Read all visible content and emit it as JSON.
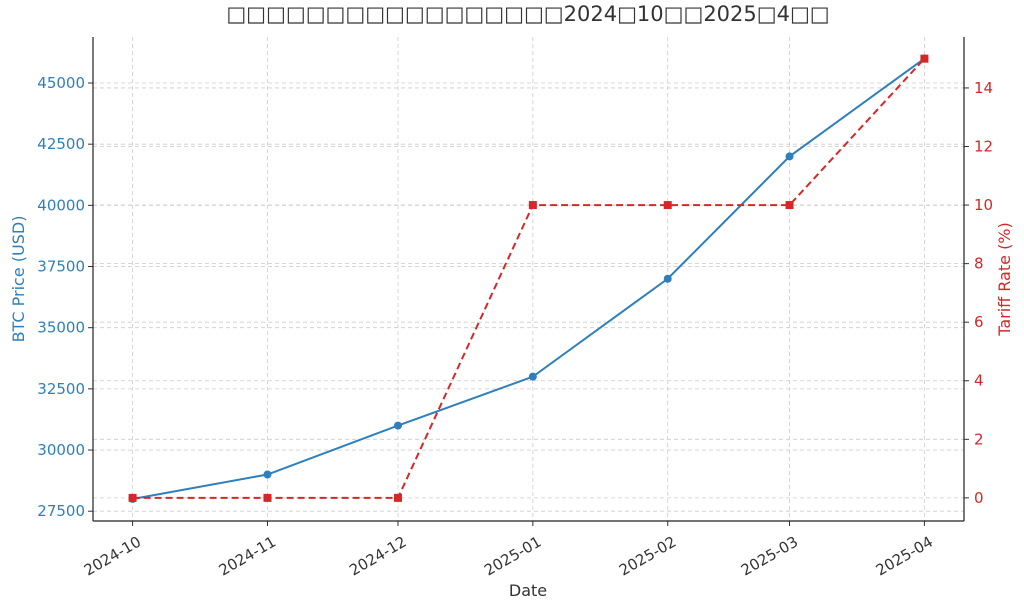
{
  "chart_data": {
    "type": "line",
    "title": "□□□□□□□□□□□□□□□□□2024□10□□2025□4□□",
    "x_label": "Date",
    "y_label": "BTC Price (USD)",
    "y2_label": "Tariff Rate (%)",
    "x": [
      "2024-10",
      "2024-11",
      "2024-12",
      "2025-01",
      "2025-02",
      "2025-03",
      "2025-04"
    ],
    "series": [
      {
        "name": "BTC Price (USD)",
        "color": "#2f7fbc",
        "marker": "circle",
        "dash": false,
        "values": [
          28000,
          29000,
          31000,
          33000,
          37000,
          42000,
          46000
        ]
      },
      {
        "name": "Tariff Rate (%)",
        "color": "#d62728",
        "marker": "square",
        "dash": true,
        "axis": "y2",
        "values": [
          0,
          0,
          0,
          10,
          10,
          10,
          15
        ]
      }
    ],
    "ylim": [
      27100,
      46880
    ],
    "yticks": [
      27500,
      30000,
      32500,
      35000,
      37500,
      40000,
      42500,
      45000
    ],
    "y2lim": [
      -0.79,
      15.74
    ],
    "y2ticks": [
      0,
      2,
      4,
      6,
      8,
      10,
      12,
      14
    ],
    "grid": true
  }
}
